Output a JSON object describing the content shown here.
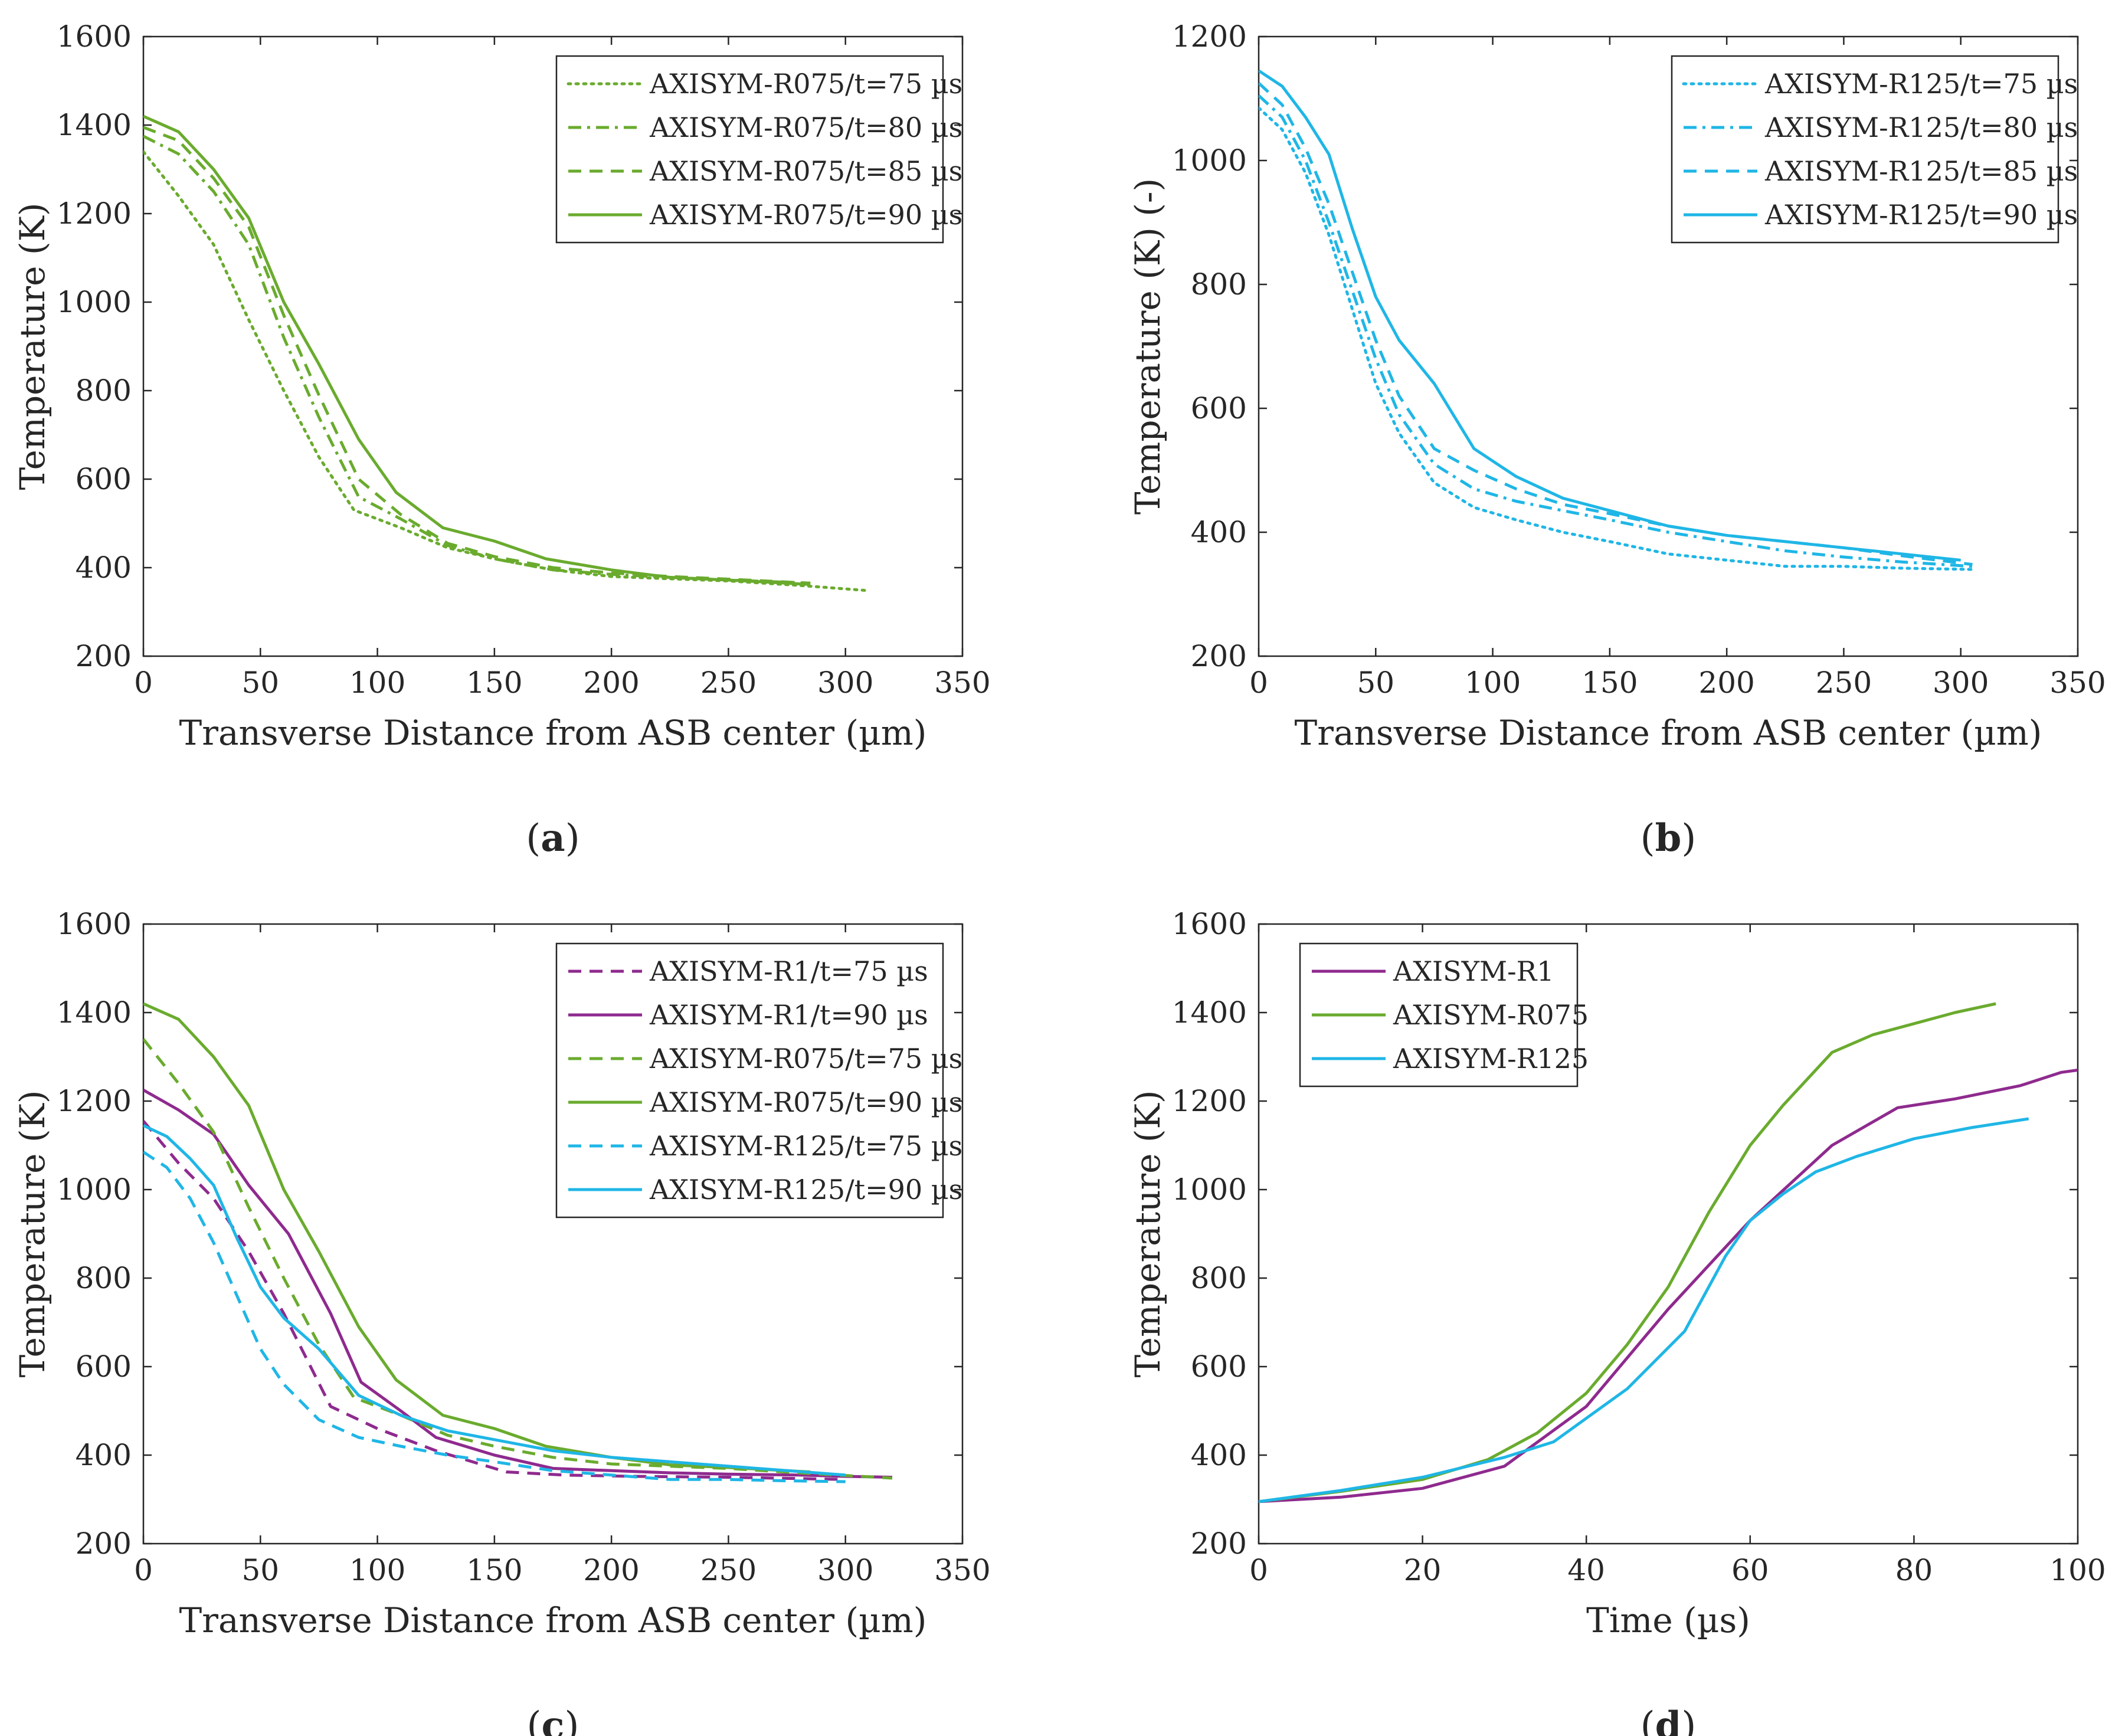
{
  "colors": {
    "purple": "#8e2a8e",
    "green": "#6aab2e",
    "blue": "#1fb6e6",
    "axis": "#262626"
  },
  "chart_data": [
    {
      "type": "line",
      "panel": "a",
      "caption": {
        "open": "(",
        "letter": "a",
        "close": ")"
      },
      "xlabel": "Transverse Distance from ASB center (µm)",
      "ylabel": "Temperature (K)",
      "xlim": [
        0,
        350
      ],
      "ylim": [
        200,
        1600
      ],
      "xticks": [
        0,
        50,
        100,
        150,
        200,
        250,
        300,
        350
      ],
      "yticks": [
        200,
        400,
        600,
        800,
        1000,
        1200,
        1400,
        1600
      ],
      "grid": false,
      "legend": "top-right",
      "series": [
        {
          "name": "AXISYM-R075/t=75 µs",
          "color": "green",
          "dash": "dotted",
          "x": [
            0,
            15,
            30,
            45,
            60,
            75,
            90,
            110,
            130,
            150,
            175,
            200,
            225,
            250,
            280,
            310
          ],
          "y": [
            1340,
            1240,
            1130,
            960,
            800,
            650,
            530,
            490,
            445,
            420,
            395,
            380,
            375,
            370,
            360,
            348
          ]
        },
        {
          "name": "AXISYM-R075/t=80 µs",
          "color": "green",
          "dash": "dashdot",
          "x": [
            0,
            15,
            30,
            45,
            60,
            75,
            92,
            110,
            130,
            150,
            175,
            200,
            225,
            250,
            285
          ],
          "y": [
            1375,
            1335,
            1250,
            1130,
            920,
            740,
            560,
            510,
            450,
            420,
            395,
            385,
            378,
            372,
            365
          ]
        },
        {
          "name": "AXISYM-R075/t=85 µs",
          "color": "green",
          "dash": "dashed",
          "x": [
            0,
            15,
            30,
            45,
            60,
            75,
            92,
            110,
            130,
            150,
            175,
            200,
            225,
            250,
            285
          ],
          "y": [
            1395,
            1365,
            1280,
            1170,
            970,
            790,
            600,
            520,
            455,
            425,
            400,
            388,
            380,
            374,
            365
          ]
        },
        {
          "name": "AXISYM-R075/t=90 µs",
          "color": "green",
          "dash": "solid",
          "x": [
            0,
            15,
            30,
            45,
            60,
            75,
            92,
            108,
            128,
            150,
            172,
            200,
            225,
            250,
            285
          ],
          "y": [
            1420,
            1385,
            1300,
            1190,
            1000,
            860,
            690,
            570,
            490,
            460,
            420,
            395,
            378,
            372,
            362
          ]
        }
      ]
    },
    {
      "type": "line",
      "panel": "b",
      "caption": {
        "open": "(",
        "letter": "b",
        "close": ")"
      },
      "xlabel": "Transverse Distance from ASB center (µm)",
      "ylabel": "Temperature (K) (-)",
      "xlim": [
        0,
        350
      ],
      "ylim": [
        200,
        1200
      ],
      "xticks": [
        0,
        50,
        100,
        150,
        200,
        250,
        300,
        350
      ],
      "yticks": [
        200,
        400,
        600,
        800,
        1000,
        1200
      ],
      "grid": false,
      "legend": "top-right",
      "series": [
        {
          "name": "AXISYM-R125/t=75 µs",
          "color": "blue",
          "dash": "dotted",
          "x": [
            0,
            10,
            20,
            30,
            40,
            50,
            60,
            75,
            92,
            110,
            130,
            150,
            175,
            200,
            225,
            250,
            275,
            305
          ],
          "y": [
            1085,
            1050,
            980,
            880,
            760,
            640,
            560,
            480,
            440,
            420,
            400,
            385,
            365,
            355,
            345,
            345,
            342,
            340
          ]
        },
        {
          "name": "AXISYM-R125/t=80 µs",
          "color": "blue",
          "dash": "dashdot",
          "x": [
            0,
            10,
            20,
            30,
            40,
            50,
            60,
            75,
            92,
            110,
            130,
            150,
            175,
            200,
            225,
            250,
            275,
            305
          ],
          "y": [
            1105,
            1070,
            1000,
            900,
            790,
            680,
            590,
            510,
            470,
            450,
            435,
            420,
            400,
            385,
            370,
            360,
            352,
            345
          ]
        },
        {
          "name": "AXISYM-R125/t=85 µs",
          "color": "blue",
          "dash": "dashed",
          "x": [
            0,
            10,
            20,
            30,
            40,
            50,
            60,
            75,
            92,
            110,
            130,
            150,
            175,
            200,
            225,
            250,
            275,
            305
          ],
          "y": [
            1125,
            1090,
            1020,
            930,
            820,
            710,
            620,
            535,
            500,
            470,
            445,
            430,
            410,
            395,
            385,
            375,
            362,
            348
          ]
        },
        {
          "name": "AXISYM-R125/t=90 µs",
          "color": "blue",
          "dash": "solid",
          "x": [
            0,
            10,
            20,
            30,
            40,
            50,
            60,
            75,
            92,
            110,
            130,
            150,
            175,
            200,
            225,
            250,
            275,
            300
          ],
          "y": [
            1145,
            1120,
            1070,
            1010,
            890,
            780,
            710,
            640,
            535,
            490,
            455,
            435,
            410,
            395,
            385,
            375,
            365,
            355
          ]
        }
      ]
    },
    {
      "type": "line",
      "panel": "c",
      "caption": {
        "open": "(",
        "letter": "c",
        "close": ")"
      },
      "xlabel": "Transverse Distance from ASB center (µm)",
      "ylabel": "Temperature (K)",
      "xlim": [
        0,
        350
      ],
      "ylim": [
        200,
        1600
      ],
      "xticks": [
        0,
        50,
        100,
        150,
        200,
        250,
        300,
        350
      ],
      "yticks": [
        200,
        400,
        600,
        800,
        1000,
        1200,
        1400,
        1600
      ],
      "grid": false,
      "legend": "top-right",
      "series": [
        {
          "name": "AXISYM-R1/t=75 µs",
          "color": "purple",
          "dash": "dashed",
          "x": [
            0,
            15,
            30,
            45,
            60,
            80,
            100,
            125,
            155,
            180,
            210,
            250,
            300
          ],
          "y": [
            1155,
            1060,
            980,
            860,
            720,
            510,
            460,
            410,
            362,
            355,
            352,
            350,
            345
          ]
        },
        {
          "name": "AXISYM-R1/t=90 µs",
          "color": "purple",
          "dash": "solid",
          "x": [
            0,
            15,
            30,
            45,
            62,
            80,
            93,
            110,
            125,
            150,
            175,
            200,
            225,
            250,
            280,
            300,
            320
          ],
          "y": [
            1225,
            1180,
            1125,
            1010,
            900,
            720,
            565,
            500,
            440,
            400,
            370,
            365,
            360,
            357,
            355,
            352,
            350
          ]
        },
        {
          "name": "AXISYM-R075/t=75 µs",
          "color": "green",
          "dash": "dashed",
          "x": [
            0,
            15,
            30,
            45,
            60,
            75,
            90,
            110,
            130,
            150,
            175,
            200,
            225,
            250,
            280,
            320
          ],
          "y": [
            1340,
            1240,
            1130,
            960,
            800,
            650,
            530,
            490,
            445,
            420,
            395,
            380,
            375,
            370,
            360,
            348
          ]
        },
        {
          "name": "AXISYM-R075/t=90 µs",
          "color": "green",
          "dash": "solid",
          "x": [
            0,
            15,
            30,
            45,
            60,
            75,
            92,
            108,
            128,
            150,
            172,
            200,
            225,
            250,
            285
          ],
          "y": [
            1420,
            1385,
            1300,
            1190,
            1000,
            860,
            690,
            570,
            490,
            460,
            420,
            395,
            378,
            372,
            362
          ]
        },
        {
          "name": "AXISYM-R125/t=75 µs",
          "color": "blue",
          "dash": "dashed",
          "x": [
            0,
            10,
            20,
            30,
            40,
            50,
            60,
            75,
            92,
            110,
            130,
            150,
            175,
            200,
            225,
            250,
            275,
            300
          ],
          "y": [
            1085,
            1050,
            980,
            880,
            760,
            640,
            560,
            480,
            440,
            420,
            400,
            385,
            365,
            355,
            345,
            345,
            342,
            340
          ]
        },
        {
          "name": "AXISYM-R125/t=90 µs",
          "color": "blue",
          "dash": "solid",
          "x": [
            0,
            10,
            20,
            30,
            40,
            50,
            60,
            75,
            92,
            110,
            130,
            150,
            175,
            200,
            225,
            250,
            275,
            300
          ],
          "y": [
            1145,
            1120,
            1070,
            1010,
            890,
            780,
            710,
            640,
            535,
            490,
            455,
            435,
            410,
            395,
            385,
            375,
            365,
            355
          ]
        }
      ]
    },
    {
      "type": "line",
      "panel": "d",
      "caption": {
        "open": "(",
        "letter": "d",
        "close": ")"
      },
      "xlabel": "Time (µs)",
      "ylabel": "Temperature (K)",
      "xlim": [
        0,
        100
      ],
      "ylim": [
        200,
        1600
      ],
      "xticks": [
        0,
        20,
        40,
        60,
        80,
        100
      ],
      "yticks": [
        200,
        400,
        600,
        800,
        1000,
        1200,
        1400,
        1600
      ],
      "grid": false,
      "legend": "top-left",
      "series": [
        {
          "name": "AXISYM-R1",
          "color": "purple",
          "dash": "solid",
          "x": [
            0,
            10,
            20,
            30,
            40,
            50,
            60,
            70,
            78,
            85,
            93,
            98,
            100
          ],
          "y": [
            295,
            305,
            325,
            375,
            510,
            730,
            930,
            1100,
            1185,
            1205,
            1235,
            1265,
            1270
          ]
        },
        {
          "name": "AXISYM-R075",
          "color": "green",
          "dash": "solid",
          "x": [
            0,
            10,
            20,
            28,
            34,
            40,
            45,
            50,
            55,
            60,
            64,
            70,
            75,
            80,
            85,
            90
          ],
          "y": [
            295,
            318,
            345,
            390,
            450,
            540,
            650,
            780,
            950,
            1100,
            1190,
            1310,
            1350,
            1375,
            1400,
            1420
          ]
        },
        {
          "name": "AXISYM-R125",
          "color": "blue",
          "dash": "solid",
          "x": [
            0,
            10,
            20,
            30,
            36,
            45,
            52,
            57,
            60,
            64,
            68,
            73,
            80,
            87,
            94
          ],
          "y": [
            295,
            320,
            350,
            395,
            430,
            550,
            680,
            850,
            930,
            990,
            1040,
            1075,
            1115,
            1140,
            1160
          ]
        }
      ]
    }
  ]
}
